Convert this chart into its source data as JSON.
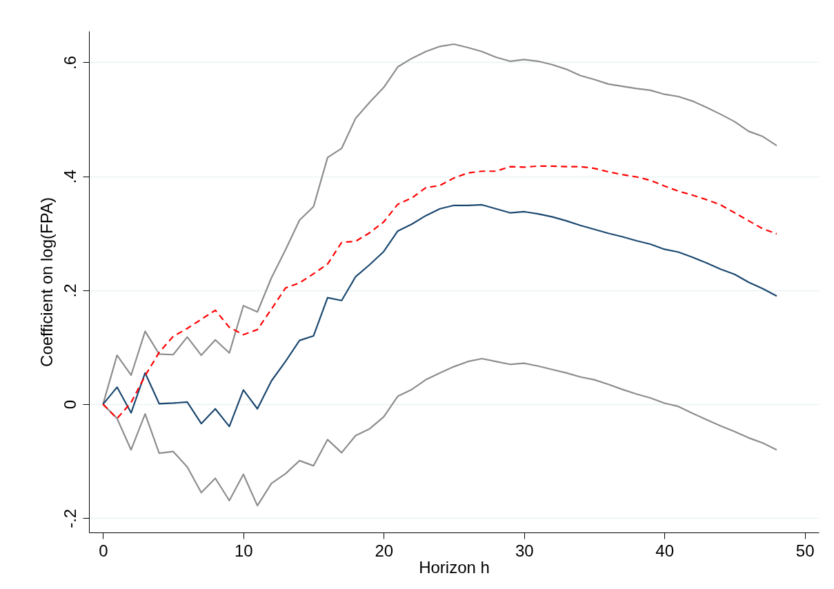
{
  "chart_data": {
    "type": "line",
    "xlabel": "Horizon h",
    "ylabel": "Coefficient on log(FPA)",
    "x": [
      0,
      1,
      2,
      3,
      4,
      5,
      6,
      7,
      8,
      9,
      10,
      11,
      12,
      13,
      14,
      15,
      16,
      17,
      18,
      19,
      20,
      21,
      22,
      23,
      24,
      25,
      26,
      27,
      28,
      29,
      30,
      31,
      32,
      33,
      34,
      35,
      36,
      37,
      38,
      39,
      40,
      41,
      42,
      43,
      44,
      45,
      46,
      47,
      48
    ],
    "series": [
      {
        "color": "#8c8c8c",
        "line_style": "solid",
        "values": [
          0,
          0.086,
          0.051,
          0.128,
          0.088,
          0.087,
          0.118,
          0.086,
          0.113,
          0.09,
          0.173,
          0.162,
          0.222,
          0.271,
          0.323,
          0.347,
          0.433,
          0.449,
          0.502,
          0.53,
          0.556,
          0.592,
          0.607,
          0.619,
          0.628,
          0.632,
          0.626,
          0.619,
          0.609,
          0.602,
          0.605,
          0.602,
          0.596,
          0.588,
          0.577,
          0.57,
          0.562,
          0.558,
          0.554,
          0.551,
          0.544,
          0.54,
          0.532,
          0.521,
          0.509,
          0.496,
          0.479,
          0.47,
          0.454
        ]
      },
      {
        "color": "#8c8c8c",
        "line_style": "solid",
        "values": [
          0,
          -0.025,
          -0.08,
          -0.017,
          -0.086,
          -0.083,
          -0.11,
          -0.155,
          -0.13,
          -0.169,
          -0.123,
          -0.178,
          -0.139,
          -0.122,
          -0.099,
          -0.108,
          -0.062,
          -0.085,
          -0.055,
          -0.043,
          -0.022,
          0.014,
          0.026,
          0.043,
          0.055,
          0.066,
          0.075,
          0.08,
          0.075,
          0.07,
          0.072,
          0.067,
          0.061,
          0.055,
          0.048,
          0.043,
          0.035,
          0.026,
          0.018,
          0.011,
          0.002,
          -0.004,
          -0.016,
          -0.027,
          -0.038,
          -0.048,
          -0.059,
          -0.068,
          -0.08
        ]
      },
      {
        "color": "#1a476f",
        "line_style": "solid",
        "values": [
          0,
          0.03,
          -0.015,
          0.055,
          0.001,
          0.002,
          0.004,
          -0.034,
          -0.008,
          -0.039,
          0.025,
          -0.008,
          0.041,
          0.075,
          0.112,
          0.12,
          0.187,
          0.182,
          0.224,
          0.245,
          0.268,
          0.304,
          0.316,
          0.331,
          0.343,
          0.349,
          0.349,
          0.35,
          0.343,
          0.336,
          0.338,
          0.334,
          0.329,
          0.322,
          0.314,
          0.307,
          0.3,
          0.294,
          0.287,
          0.281,
          0.272,
          0.267,
          0.258,
          0.248,
          0.237,
          0.228,
          0.214,
          0.203,
          0.19
        ]
      },
      {
        "color": "#ff0000",
        "line_style": "dashed",
        "values": [
          0,
          -0.025,
          0.003,
          0.05,
          0.091,
          0.119,
          0.133,
          0.149,
          0.165,
          0.135,
          0.122,
          0.131,
          0.167,
          0.204,
          0.213,
          0.229,
          0.246,
          0.284,
          0.286,
          0.301,
          0.32,
          0.351,
          0.362,
          0.38,
          0.384,
          0.397,
          0.406,
          0.409,
          0.409,
          0.417,
          0.416,
          0.418,
          0.418,
          0.417,
          0.417,
          0.414,
          0.408,
          0.403,
          0.399,
          0.393,
          0.383,
          0.374,
          0.367,
          0.359,
          0.35,
          0.336,
          0.322,
          0.308,
          0.299
        ]
      }
    ],
    "xlim": [
      -1,
      51
    ],
    "xticks": [
      0,
      10,
      20,
      30,
      40,
      50
    ],
    "ylim": [
      -0.225,
      0.655
    ],
    "yticks": [
      {
        "value": -0.2,
        "label": "-.2"
      },
      0,
      {
        "value": 0.2,
        "label": ".2"
      },
      {
        "value": 0.4,
        "label": ".4"
      },
      {
        "value": 0.6,
        "label": ".6"
      }
    ],
    "grid": "y"
  }
}
